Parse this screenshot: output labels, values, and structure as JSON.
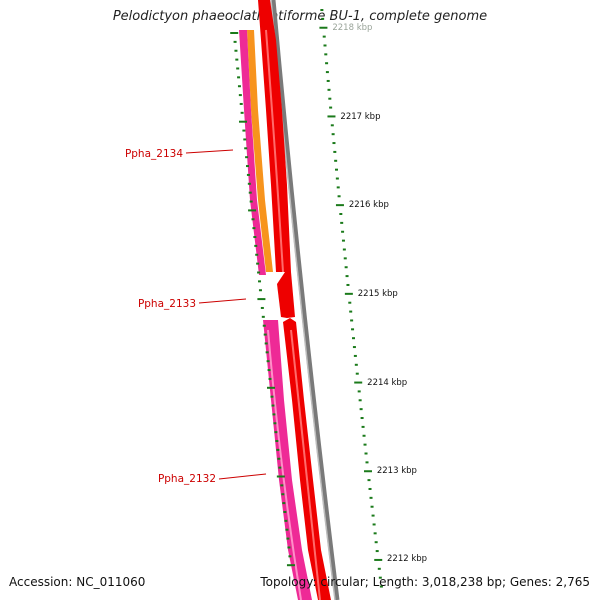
{
  "title": "Pelodictyon phaeoclathratiforme BU-1, complete genome",
  "footer": {
    "accession": "Accession: NC_011060",
    "summary": "Topology: circular; Length: 3,018,238 bp; Genes: 2,765"
  },
  "colors": {
    "tick": "#1a7a1a",
    "tick_label": "#111111",
    "gene_label": "#cc0000",
    "backbone": "#7a7a7a",
    "gene_red": "#ee0000",
    "gene_pink": "#ee2a96",
    "gene_orange": "#f7941d"
  },
  "gene_labels": [
    {
      "name": "Ppha_2134"
    },
    {
      "name": "Ppha_2133"
    },
    {
      "name": "Ppha_2132"
    }
  ],
  "scale_labels": [
    "2218 kbp",
    "2217 kbp",
    "2216 kbp",
    "2215 kbp",
    "2214 kbp",
    "2213 kbp",
    "2212 kbp"
  ]
}
